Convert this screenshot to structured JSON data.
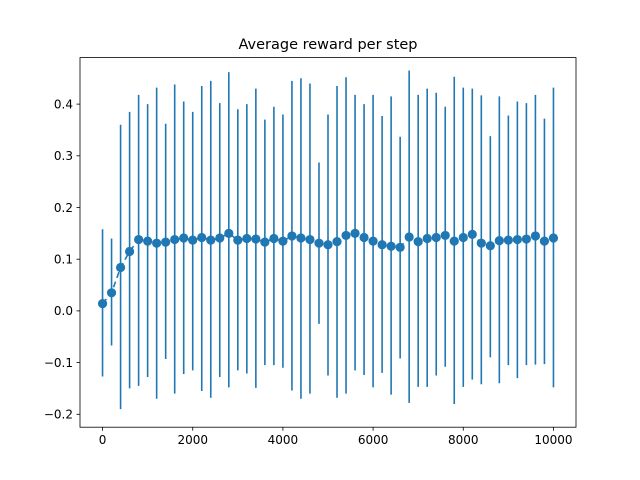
{
  "chart_data": {
    "type": "scatter",
    "title": "Average reward per step",
    "xlabel": "",
    "ylabel": "",
    "xlim": [
      -500,
      10500
    ],
    "ylim": [
      -0.225,
      0.49
    ],
    "xticks": [
      0,
      2000,
      4000,
      6000,
      8000,
      10000
    ],
    "xtick_labels": [
      "0",
      "2000",
      "4000",
      "6000",
      "8000",
      "10000"
    ],
    "yticks": [
      -0.2,
      -0.1,
      0.0,
      0.1,
      0.2,
      0.3,
      0.4
    ],
    "ytick_labels": [
      "−0.2",
      "−0.1",
      "0.0",
      "0.1",
      "0.2",
      "0.3",
      "0.4"
    ],
    "grid": false,
    "legend": "none",
    "color": "#1f77b4",
    "series": [
      {
        "x": [
          0,
          200,
          400,
          600,
          800,
          1000,
          1200,
          1400,
          1600,
          1800,
          2000,
          2200,
          2400,
          2600,
          2800,
          3000,
          3200,
          3400,
          3600,
          3800,
          4000,
          4200,
          4400,
          4600,
          4800,
          5000,
          5200,
          5400,
          5600,
          5800,
          6000,
          6200,
          6400,
          6600,
          6800,
          7000,
          7200,
          7400,
          7600,
          7800,
          8000,
          8200,
          8400,
          8600,
          8800,
          9000,
          9200,
          9400,
          9600,
          9800,
          10000
        ],
        "y": [
          0.014,
          0.035,
          0.084,
          0.115,
          0.138,
          0.135,
          0.131,
          0.133,
          0.138,
          0.141,
          0.137,
          0.142,
          0.137,
          0.141,
          0.15,
          0.137,
          0.14,
          0.139,
          0.133,
          0.14,
          0.135,
          0.145,
          0.141,
          0.138,
          0.131,
          0.128,
          0.134,
          0.146,
          0.15,
          0.142,
          0.135,
          0.128,
          0.125,
          0.123,
          0.143,
          0.134,
          0.14,
          0.142,
          0.146,
          0.135,
          0.142,
          0.148,
          0.131,
          0.126,
          0.136,
          0.137,
          0.138,
          0.139,
          0.145,
          0.135,
          0.141
        ],
        "yerr_low": [
          -0.127,
          -0.067,
          -0.19,
          -0.15,
          -0.145,
          -0.128,
          -0.17,
          -0.093,
          -0.16,
          -0.122,
          -0.115,
          -0.155,
          -0.168,
          -0.128,
          -0.148,
          -0.115,
          -0.121,
          -0.149,
          -0.105,
          -0.105,
          -0.11,
          -0.154,
          -0.17,
          -0.16,
          -0.025,
          -0.125,
          -0.168,
          -0.16,
          -0.115,
          -0.124,
          -0.148,
          -0.12,
          -0.162,
          -0.092,
          -0.178,
          -0.147,
          -0.147,
          -0.125,
          -0.108,
          -0.18,
          -0.147,
          -0.133,
          -0.142,
          -0.09,
          -0.14,
          -0.105,
          -0.13,
          -0.105,
          -0.104,
          -0.103,
          -0.148
        ],
        "yerr_high": [
          0.158,
          0.14,
          0.36,
          0.385,
          0.418,
          0.4,
          0.432,
          0.362,
          0.438,
          0.405,
          0.385,
          0.435,
          0.445,
          0.402,
          0.462,
          0.39,
          0.4,
          0.43,
          0.37,
          0.395,
          0.38,
          0.445,
          0.45,
          0.44,
          0.287,
          0.38,
          0.435,
          0.452,
          0.418,
          0.4,
          0.418,
          0.377,
          0.415,
          0.337,
          0.465,
          0.418,
          0.43,
          0.422,
          0.395,
          0.453,
          0.432,
          0.43,
          0.417,
          0.338,
          0.415,
          0.378,
          0.405,
          0.402,
          0.418,
          0.372,
          0.432
        ]
      }
    ]
  }
}
